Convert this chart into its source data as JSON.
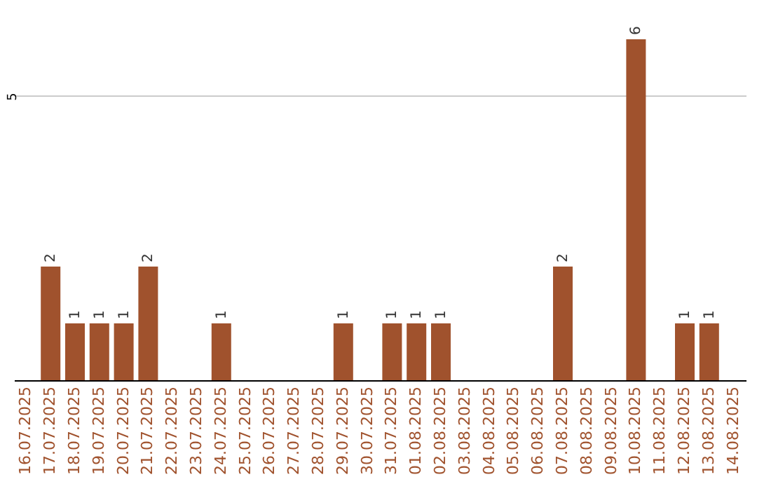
{
  "chart_data": {
    "type": "bar",
    "categories": [
      "16.07.2025",
      "17.07.2025",
      "18.07.2025",
      "19.07.2025",
      "20.07.2025",
      "21.07.2025",
      "22.07.2025",
      "23.07.2025",
      "24.07.2025",
      "25.07.2025",
      "26.07.2025",
      "27.07.2025",
      "28.07.2025",
      "29.07.2025",
      "30.07.2025",
      "31.07.2025",
      "01.08.2025",
      "02.08.2025",
      "03.08.2025",
      "04.08.2025",
      "05.08.2025",
      "06.08.2025",
      "07.08.2025",
      "08.08.2025",
      "09.08.2025",
      "10.08.2025",
      "11.08.2025",
      "12.08.2025",
      "13.08.2025",
      "14.08.2025"
    ],
    "values": [
      0,
      2,
      1,
      1,
      1,
      2,
      0,
      0,
      1,
      0,
      0,
      0,
      0,
      1,
      0,
      1,
      1,
      1,
      0,
      0,
      0,
      0,
      2,
      0,
      0,
      6,
      0,
      1,
      1,
      0
    ],
    "value_labels": [
      null,
      "2",
      "1",
      "1",
      "1",
      "2",
      null,
      null,
      "1",
      null,
      null,
      null,
      null,
      "1",
      null,
      "1",
      "1",
      "1",
      null,
      null,
      null,
      null,
      "2",
      null,
      null,
      "6",
      null,
      "1",
      "1",
      null
    ],
    "color": "#a0522d",
    "ylim": [
      0,
      6
    ],
    "yticks": [
      5
    ],
    "grid": "y"
  }
}
